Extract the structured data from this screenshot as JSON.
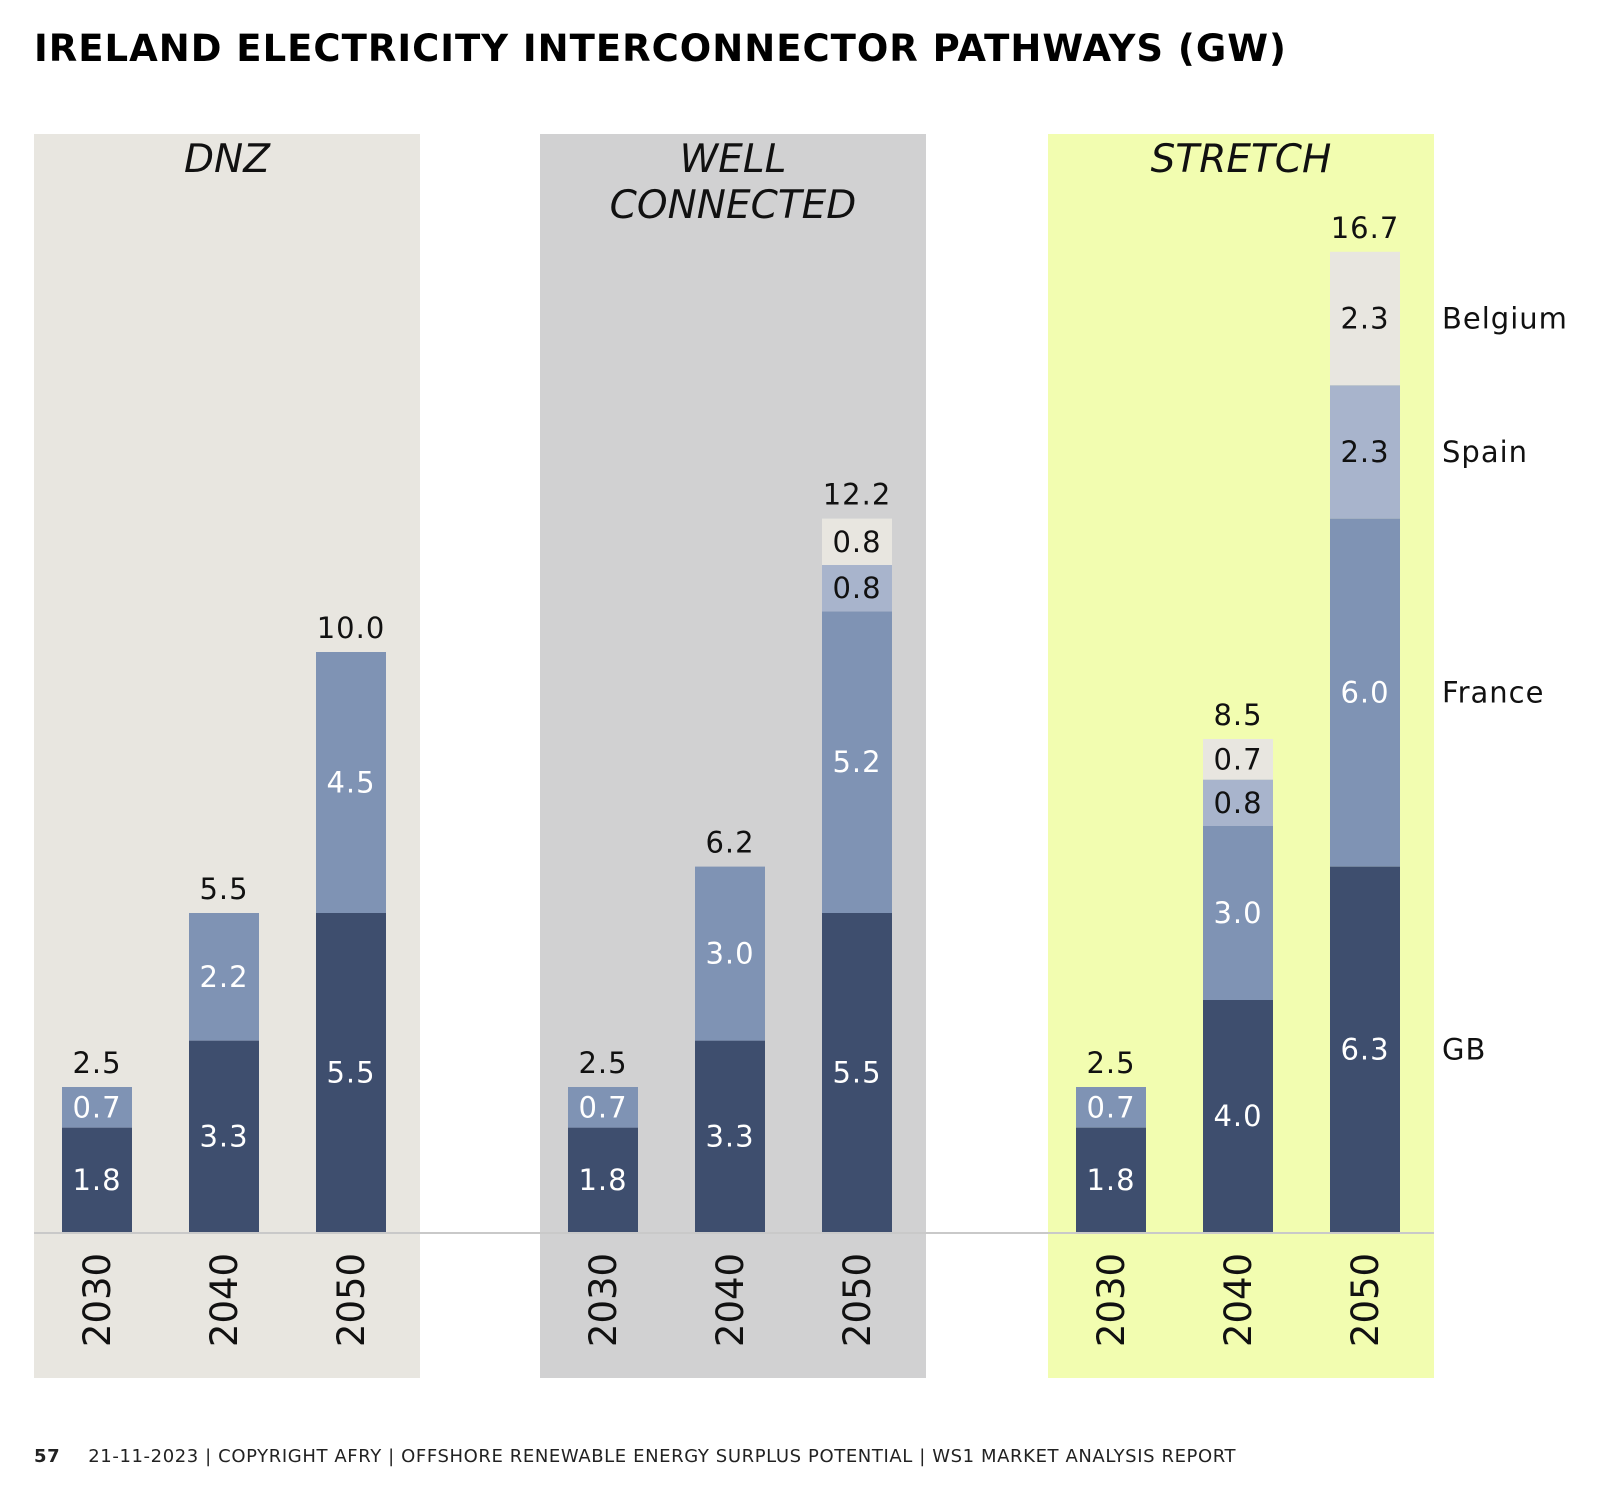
{
  "title": "IRELAND ELECTRICITY INTERCONNECTOR PATHWAYS (GW)",
  "footer": {
    "page": "57",
    "text": "21-11-2023 | COPYRIGHT AFRY | OFFSHORE RENEWABLE ENERGY SURPLUS POTENTIAL | WS1 MARKET ANALYSIS REPORT"
  },
  "colors": {
    "panel_dnz": "#e8e6e0",
    "panel_well_connected": "#d1d1d2",
    "panel_stretch": "#f2fdb0",
    "gb": "#3e4e6e",
    "france": "#7f93b4",
    "spain": "#a8b4cc",
    "belgium": "#e8e6e0",
    "baseline": "#c9c9c9"
  },
  "chart_data": {
    "type": "bar",
    "stacked": true,
    "unit": "GW",
    "title": "IRELAND ELECTRICITY INTERCONNECTOR PATHWAYS (GW)",
    "legend": [
      "Belgium",
      "Spain",
      "France",
      "GB"
    ],
    "legend_placement": "right",
    "ylim": [
      0,
      16.7
    ],
    "grid": false,
    "panels": [
      {
        "name_lines": [
          "DNZ"
        ],
        "categories": [
          "2030",
          "2040",
          "2050"
        ],
        "totals": [
          "2.5",
          "5.5",
          "10.0"
        ],
        "series": [
          {
            "name": "GB",
            "values": [
              1.8,
              3.3,
              5.5
            ]
          },
          {
            "name": "France",
            "values": [
              0.7,
              2.2,
              4.5
            ]
          },
          {
            "name": "Spain",
            "values": [
              0,
              0,
              0
            ]
          },
          {
            "name": "Belgium",
            "values": [
              0,
              0,
              0
            ]
          }
        ]
      },
      {
        "name_lines": [
          "WELL",
          "CONNECTED"
        ],
        "categories": [
          "2030",
          "2040",
          "2050"
        ],
        "totals": [
          "2.5",
          "6.2",
          "12.2"
        ],
        "series": [
          {
            "name": "GB",
            "values": [
              1.8,
              3.3,
              5.5
            ]
          },
          {
            "name": "France",
            "values": [
              0.7,
              3.0,
              5.2
            ]
          },
          {
            "name": "Spain",
            "values": [
              0,
              0,
              0.8
            ]
          },
          {
            "name": "Belgium",
            "values": [
              0,
              0,
              0.8
            ]
          }
        ]
      },
      {
        "name_lines": [
          "STRETCH"
        ],
        "categories": [
          "2030",
          "2040",
          "2050"
        ],
        "totals": [
          "2.5",
          "8.5",
          "16.7"
        ],
        "series": [
          {
            "name": "GB",
            "values": [
              1.8,
              4.0,
              6.3
            ]
          },
          {
            "name": "France",
            "values": [
              0.7,
              3.0,
              6.0
            ]
          },
          {
            "name": "Spain",
            "values": [
              0,
              0.8,
              2.3
            ]
          },
          {
            "name": "Belgium",
            "values": [
              0,
              0.7,
              2.3
            ]
          }
        ]
      }
    ]
  }
}
